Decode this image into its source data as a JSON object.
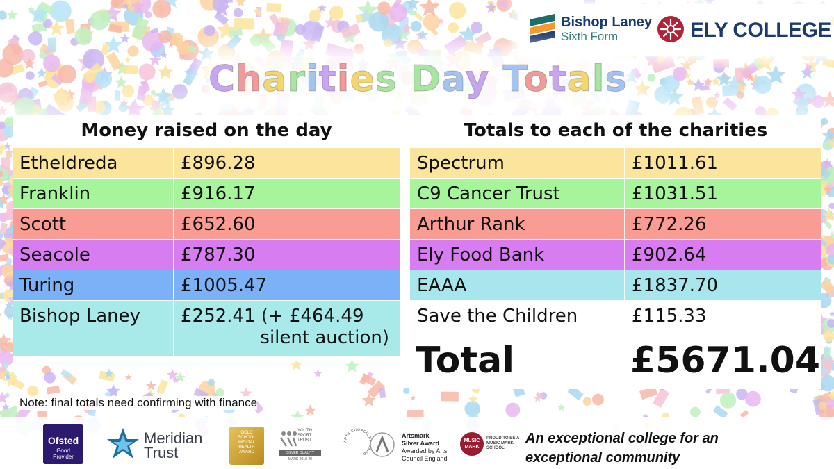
{
  "title": {
    "letters": [
      {
        "ch": "C",
        "color": "#c9a4f0"
      },
      {
        "ch": "h",
        "color": "#f29a9a"
      },
      {
        "ch": "a",
        "color": "#f5d56e"
      },
      {
        "ch": "r",
        "color": "#a8e6a0"
      },
      {
        "ch": "i",
        "color": "#a3c4f3"
      },
      {
        "ch": "t",
        "color": "#c9a4f0"
      },
      {
        "ch": "i",
        "color": "#f29a9a"
      },
      {
        "ch": "e",
        "color": "#f5d56e"
      },
      {
        "ch": "s",
        "color": "#a8e6a0"
      },
      {
        "ch": " ",
        "color": "#ffffff"
      },
      {
        "ch": "D",
        "color": "#a8e6a0"
      },
      {
        "ch": "a",
        "color": "#a3c4f3"
      },
      {
        "ch": "y",
        "color": "#c9a4f0"
      },
      {
        "ch": " ",
        "color": "#ffffff"
      },
      {
        "ch": "T",
        "color": "#a3c4f3"
      },
      {
        "ch": "o",
        "color": "#f29a9a"
      },
      {
        "ch": "t",
        "color": "#c9a4f0"
      },
      {
        "ch": "a",
        "color": "#f5d56e"
      },
      {
        "ch": "l",
        "color": "#a8e6a0"
      },
      {
        "ch": "s",
        "color": "#a3c4f3"
      }
    ]
  },
  "logos": {
    "bishop_laney_name": "Bishop Laney",
    "bishop_laney_sub": "Sixth Form",
    "ely_college": "ELY COLLEGE"
  },
  "left_table": {
    "header": "Money raised on the day",
    "rows": [
      {
        "name": "Etheldreda",
        "value": "£896.28",
        "color": "#fbe49c"
      },
      {
        "name": "Franklin",
        "value": "£916.17",
        "color": "#a6f59a"
      },
      {
        "name": "Scott",
        "value": "£652.60",
        "color": "#f99c94"
      },
      {
        "name": "Seacole",
        "value": "£787.30",
        "color": "#d87cf2"
      },
      {
        "name": "Turing",
        "value": "£1005.47",
        "color": "#7bb2f7"
      },
      {
        "name": "Bishop Laney",
        "value": "£252.41 (+ £464.49",
        "value_line2": "silent auction)",
        "color": "#a8eaea"
      }
    ]
  },
  "right_table": {
    "header": "Totals to each of the charities",
    "rows": [
      {
        "name": "Spectrum",
        "value": "£1011.61",
        "color": "#fbe49c"
      },
      {
        "name": "C9 Cancer Trust",
        "value": "£1031.51",
        "color": "#a6f59a"
      },
      {
        "name": "Arthur Rank",
        "value": "£772.26",
        "color": "#f99c94"
      },
      {
        "name": "Ely Food Bank",
        "value": "£902.64",
        "color": "#d87cf2"
      },
      {
        "name": "EAAA",
        "value": "£1837.70",
        "color": "#a8e6ee"
      },
      {
        "name": "Save the Children",
        "value": "£115.33",
        "color": "#ffffff"
      }
    ],
    "total_label": "Total",
    "total_value": "£5671.04"
  },
  "note": "Note: final totals need confirming with finance",
  "footer": {
    "ofsted_name": "Ofsted",
    "ofsted_sub": "Good\nProvider",
    "meridian_name": "Meridian",
    "meridian_sub": "Trust",
    "gold_text": "GOLD\nSCHOOL\nMENTAL\nHEALTH\nAWARD",
    "yst_text": "YOUTH\nSPORT\nTRUST",
    "yst_bar": "SILVER QUALITY",
    "yst_year": "MARK 2018-20",
    "arts_council_ring": "ARTS COUNCIL ENGLAND",
    "artsmark_title": "Artsmark",
    "artsmark_award": "Silver Award",
    "artsmark_by": "Awarded by Arts\nCouncil England",
    "music_mark": "MUSIC\nMARK",
    "music_proud": "PROUD TO BE A\nMUSIC MARK\nSCHOOL",
    "tagline_line1": "An exceptional college for an",
    "tagline_line2": "exceptional community"
  }
}
